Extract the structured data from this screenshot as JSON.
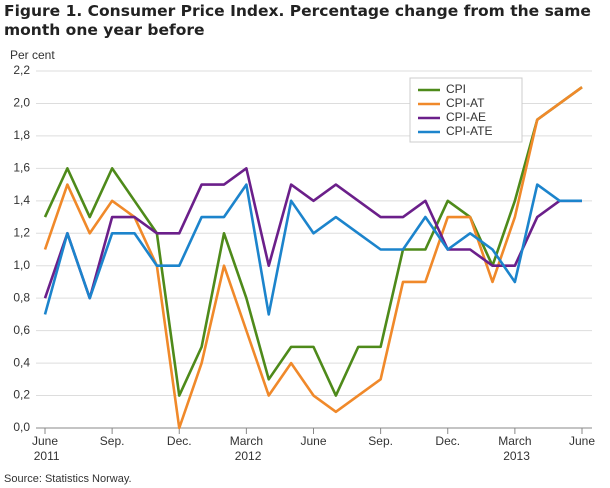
{
  "chart_data": {
    "type": "line",
    "title": "Figure 1. Consumer Price Index. Percentage change from the same month one year before",
    "y_label": "Per cent",
    "source": "Source: Statistics Norway.",
    "categories": [
      "June 2011",
      null,
      null,
      "Sep.",
      null,
      null,
      "Dec.",
      null,
      null,
      "March 2012",
      null,
      null,
      "June",
      null,
      null,
      "Sep.",
      null,
      null,
      "Dec.",
      null,
      null,
      "March 2013",
      null,
      null,
      "June"
    ],
    "series": [
      {
        "name": "CPI",
        "color": "#4e8a1a",
        "values": [
          1.3,
          1.6,
          1.3,
          1.6,
          1.4,
          1.2,
          0.2,
          0.5,
          1.2,
          0.8,
          0.3,
          0.5,
          0.5,
          0.2,
          0.5,
          0.5,
          1.1,
          1.1,
          1.4,
          1.3,
          1.0,
          1.4,
          1.9,
          2.0,
          2.1
        ]
      },
      {
        "name": "CPI-AT",
        "color": "#f0892a",
        "values": [
          1.1,
          1.5,
          1.2,
          1.4,
          1.3,
          1.0,
          0.0,
          0.4,
          1.0,
          0.6,
          0.2,
          0.4,
          0.2,
          0.1,
          0.2,
          0.3,
          0.9,
          0.9,
          1.3,
          1.3,
          0.9,
          1.3,
          1.9,
          2.0,
          2.1
        ]
      },
      {
        "name": "CPI-AE",
        "color": "#6b1f8a",
        "values": [
          0.8,
          1.2,
          0.8,
          1.3,
          1.3,
          1.2,
          1.2,
          1.5,
          1.5,
          1.6,
          1.0,
          1.5,
          1.4,
          1.5,
          1.4,
          1.3,
          1.3,
          1.4,
          1.1,
          1.1,
          1.0,
          1.0,
          1.3,
          1.4,
          1.4
        ]
      },
      {
        "name": "CPI-ATE",
        "color": "#1c84cc",
        "values": [
          0.7,
          1.2,
          0.8,
          1.2,
          1.2,
          1.0,
          1.0,
          1.3,
          1.3,
          1.5,
          0.7,
          1.4,
          1.2,
          1.3,
          1.2,
          1.1,
          1.1,
          1.3,
          1.1,
          1.2,
          1.1,
          0.9,
          1.5,
          1.4,
          1.4
        ]
      }
    ],
    "ylim": [
      0,
      2.2
    ],
    "yticks": [
      {
        "value": 0,
        "label": "0,0"
      },
      {
        "value": 0.2,
        "label": "0,2"
      },
      {
        "value": 0.4,
        "label": "0,4"
      },
      {
        "value": 0.6,
        "label": "0,6"
      },
      {
        "value": 0.8,
        "label": "0,8"
      },
      {
        "value": 1.0,
        "label": "1,0"
      },
      {
        "value": 1.2,
        "label": "1,2"
      },
      {
        "value": 1.4,
        "label": "1,4"
      },
      {
        "value": 1.6,
        "label": "1,6"
      },
      {
        "value": 1.8,
        "label": "1,8"
      },
      {
        "value": 2.0,
        "label": "2,0"
      },
      {
        "value": 2.2,
        "label": "2,2"
      }
    ],
    "grid": true,
    "legend": "top-right"
  }
}
